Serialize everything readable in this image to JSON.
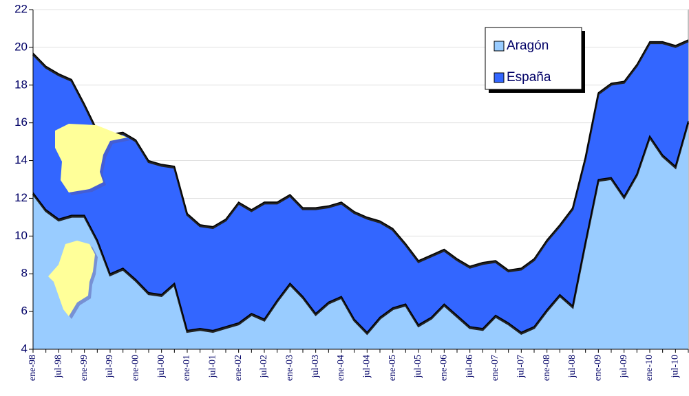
{
  "chart_data": {
    "type": "area",
    "categories": [
      "ene-98",
      null,
      "jul-98",
      null,
      "ene-99",
      null,
      "jul-99",
      null,
      "ene-00",
      null,
      "jul-00",
      null,
      "ene-01",
      null,
      "jul-01",
      null,
      "ene-02",
      null,
      "jul-02",
      null,
      "ene-03",
      null,
      "jul-03",
      null,
      "ene-04",
      null,
      "jul-04",
      null,
      "ene-05",
      null,
      "jul-05",
      null,
      "ene-06",
      null,
      "jul-06",
      null,
      "ene-07",
      null,
      "jul-07",
      null,
      "ene-08",
      null,
      "jul-08",
      null,
      "ene-09",
      null,
      "jul-09",
      null,
      "ene-10",
      null,
      "jul-10",
      null
    ],
    "series": [
      {
        "name": "Aragón",
        "color": "#99ccff",
        "values": [
          12.3,
          11.4,
          10.9,
          11.1,
          11.1,
          9.8,
          8.0,
          8.3,
          7.7,
          7.0,
          6.9,
          7.5,
          5.0,
          5.1,
          5.0,
          5.2,
          5.4,
          5.9,
          5.6,
          6.6,
          7.5,
          6.8,
          5.9,
          6.5,
          6.8,
          5.6,
          4.9,
          5.7,
          6.2,
          6.4,
          5.3,
          5.7,
          6.4,
          5.8,
          5.2,
          5.1,
          5.8,
          5.4,
          4.9,
          5.2,
          6.1,
          6.9,
          6.3,
          9.7,
          13.0,
          13.1,
          12.1,
          13.3,
          15.3,
          14.3,
          13.7,
          16.1
        ]
      },
      {
        "name": "España",
        "color": "#3366ff",
        "values": [
          19.7,
          19.0,
          18.6,
          18.3,
          17.0,
          15.6,
          15.4,
          15.5,
          15.1,
          14.0,
          13.8,
          13.7,
          11.2,
          10.6,
          10.5,
          10.9,
          11.8,
          11.4,
          11.8,
          11.8,
          12.2,
          11.5,
          11.5,
          11.6,
          11.8,
          11.3,
          11.0,
          10.8,
          10.4,
          9.6,
          8.7,
          9.0,
          9.3,
          8.8,
          8.4,
          8.6,
          8.7,
          8.2,
          8.3,
          8.8,
          9.8,
          10.6,
          11.5,
          14.2,
          17.6,
          18.1,
          18.2,
          19.1,
          20.3,
          20.3,
          20.1,
          20.4
        ]
      }
    ],
    "ylim": [
      4,
      22
    ],
    "yticks": [
      4,
      6,
      8,
      10,
      12,
      14,
      16,
      18,
      20,
      22
    ],
    "grid": true,
    "legend": "upper right"
  }
}
